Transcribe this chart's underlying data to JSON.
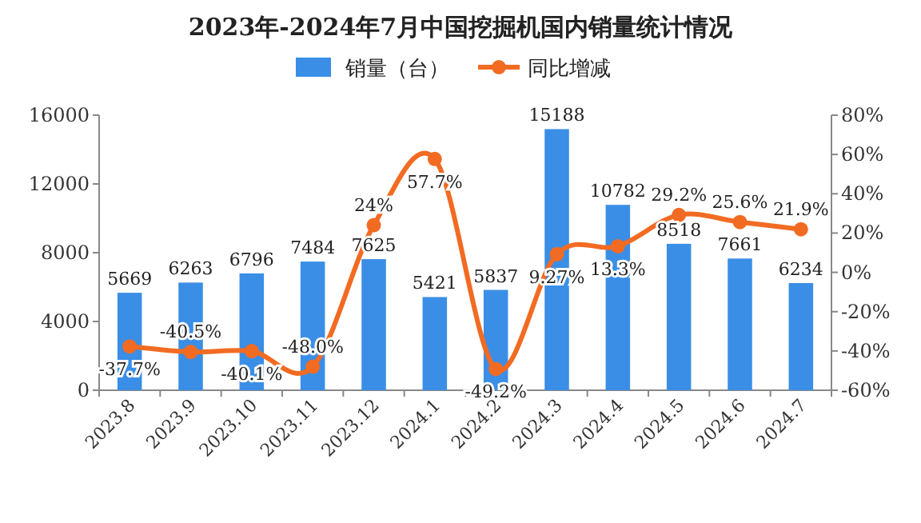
{
  "chart_data": {
    "type": "bar",
    "title": "2023年-2024年7月中国挖掘机国内销量统计情况",
    "categories": [
      "2023.8",
      "2023.9",
      "2023.10",
      "2023.11",
      "2023.12",
      "2024.1",
      "2024.2",
      "2024.3",
      "2024.4",
      "2024.5",
      "2024.6",
      "2024.7"
    ],
    "series": [
      {
        "name": "销量（台）",
        "color": "#3a8ee6",
        "values": [
          5669,
          6263,
          6796,
          7484,
          7625,
          5421,
          5837,
          15188,
          10782,
          8518,
          7661,
          6234
        ],
        "value_labels": [
          "5669",
          "6263",
          "6796",
          "7484",
          "7625",
          "5421",
          "5837",
          "15188",
          "10782",
          "8518",
          "7661",
          "6234"
        ]
      },
      {
        "name": "同比增减",
        "type": "line",
        "axis": "y2",
        "color": "#f26b22",
        "marker": "circle",
        "values": [
          -37.7,
          -40.5,
          -40.1,
          -48.0,
          24,
          57.7,
          -49.2,
          9.27,
          13.3,
          29.2,
          25.6,
          21.9
        ],
        "value_labels": [
          "-37.7%",
          "-40.5%",
          "-40.1%",
          "-48.0%",
          "24%",
          "57.7%",
          "-49.2%",
          "9.27%",
          "13.3%",
          "29.2%",
          "25.6%",
          "21.9%"
        ]
      }
    ],
    "ylim": [
      0,
      16000
    ],
    "yticks": [
      0,
      4000,
      8000,
      12000,
      16000
    ],
    "y2lim": [
      -60,
      80
    ],
    "y2ticks": [
      {
        "value": -60,
        "label": "-60%"
      },
      {
        "value": -40,
        "label": "-40%"
      },
      {
        "value": -20,
        "label": "-20%"
      },
      {
        "value": 0,
        "label": "0%"
      },
      {
        "value": 20,
        "label": "20%"
      },
      {
        "value": 40,
        "label": "40%"
      },
      {
        "value": 60,
        "label": "60%"
      },
      {
        "value": 80,
        "label": "80%"
      }
    ],
    "legend": "top",
    "grid": false
  }
}
